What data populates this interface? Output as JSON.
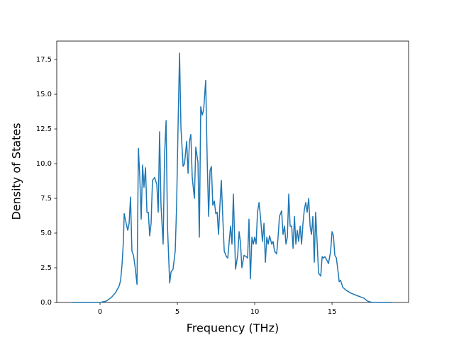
{
  "chart_data": {
    "type": "line",
    "x_label": "Frequency (THz)",
    "y_label": "Density of States",
    "color": "#1f77b4",
    "xlim": [
      -2.8,
      19.95
    ],
    "ylim": [
      0,
      18.83
    ],
    "xticks": [
      0,
      5,
      10,
      15
    ],
    "yticks": [
      {
        "value": 0,
        "label": "0.0"
      },
      2.5,
      {
        "value": 5,
        "label": "5.0"
      },
      7.5,
      {
        "value": 10,
        "label": "10.0"
      },
      12.5,
      {
        "value": 15,
        "label": "15.0"
      },
      17.5
    ],
    "x": [
      -1.79,
      -0.5,
      0,
      0.41,
      0.73,
      1.0,
      1.24,
      1.33,
      1.42,
      1.51,
      1.56,
      1.65,
      1.79,
      1.88,
      1.97,
      2.06,
      2.16,
      2.25,
      2.39,
      2.48,
      2.57,
      2.66,
      2.75,
      2.84,
      2.94,
      3.03,
      3.12,
      3.21,
      3.3,
      3.39,
      3.53,
      3.67,
      3.76,
      3.85,
      3.94,
      4.08,
      4.17,
      4.27,
      4.36,
      4.5,
      4.59,
      4.72,
      4.86,
      4.95,
      5.05,
      5.14,
      5.23,
      5.37,
      5.46,
      5.6,
      5.69,
      5.78,
      5.87,
      5.96,
      6.1,
      6.19,
      6.33,
      6.42,
      6.51,
      6.61,
      6.7,
      6.83,
      6.93,
      7.02,
      7.11,
      7.2,
      7.29,
      7.39,
      7.48,
      7.57,
      7.66,
      7.75,
      7.84,
      7.94,
      8.03,
      8.17,
      8.26,
      8.35,
      8.44,
      8.53,
      8.62,
      8.76,
      8.9,
      8.99,
      9.08,
      9.17,
      9.31,
      9.45,
      9.54,
      9.63,
      9.72,
      9.82,
      9.91,
      10.0,
      10.09,
      10.18,
      10.28,
      10.37,
      10.5,
      10.6,
      10.69,
      10.78,
      10.87,
      10.96,
      11.1,
      11.19,
      11.28,
      11.42,
      11.51,
      11.6,
      11.74,
      11.83,
      11.93,
      12.02,
      12.11,
      12.2,
      12.29,
      12.39,
      12.48,
      12.57,
      12.66,
      12.75,
      12.84,
      12.94,
      13.03,
      13.12,
      13.21,
      13.3,
      13.39,
      13.49,
      13.58,
      13.67,
      13.76,
      13.85,
      13.94,
      14.04,
      14.13,
      14.27,
      14.36,
      14.45,
      14.54,
      14.68,
      14.77,
      14.91,
      15.0,
      15.09,
      15.18,
      15.28,
      15.37,
      15.46,
      15.55,
      15.69,
      15.92,
      16.24,
      16.7,
      17.06,
      17.29,
      17.6,
      18.9
    ],
    "values": [
      0,
      0,
      0,
      0.1,
      0.36,
      0.7,
      1.2,
      1.6,
      2.7,
      4.4,
      6.4,
      5.9,
      5.2,
      5.7,
      7.6,
      3.7,
      3.4,
      2.7,
      1.3,
      11.1,
      9.0,
      6.0,
      9.9,
      8.3,
      9.7,
      6.5,
      6.5,
      4.8,
      5.7,
      8.8,
      9.0,
      8.5,
      6.5,
      12.3,
      7.0,
      4.2,
      10.6,
      13.1,
      5.5,
      1.4,
      2.2,
      2.4,
      3.7,
      7.0,
      13.1,
      17.96,
      12.6,
      9.8,
      10.0,
      11.6,
      9.3,
      11.6,
      12.1,
      9.0,
      7.5,
      11.2,
      10.1,
      4.7,
      14.1,
      13.5,
      13.9,
      16.0,
      10.1,
      6.2,
      9.5,
      9.8,
      7.0,
      7.3,
      6.4,
      6.5,
      4.9,
      7.0,
      8.8,
      6.0,
      3.7,
      3.3,
      3.2,
      4.4,
      5.5,
      4.2,
      7.8,
      2.4,
      3.4,
      5.1,
      4.3,
      2.5,
      3.4,
      3.3,
      3.2,
      6.0,
      1.7,
      4.7,
      4.2,
      4.7,
      4.2,
      6.5,
      7.2,
      6.2,
      4.4,
      5.7,
      2.9,
      4.7,
      4.2,
      4.8,
      4.2,
      4.4,
      3.7,
      3.5,
      4.7,
      6.2,
      6.6,
      4.9,
      5.5,
      4.2,
      4.7,
      7.8,
      5.5,
      5.5,
      3.9,
      6.2,
      4.2,
      5.2,
      4.4,
      5.5,
      4.2,
      5.7,
      6.7,
      7.2,
      6.5,
      7.5,
      5.5,
      4.9,
      6.2,
      2.9,
      6.5,
      4.2,
      2.1,
      1.9,
      3.3,
      3.2,
      3.3,
      3.0,
      2.8,
      3.7,
      5.1,
      4.8,
      3.4,
      3.2,
      2.4,
      1.5,
      1.6,
      1.1,
      0.87,
      0.66,
      0.46,
      0.31,
      0.1,
      0,
      0
    ]
  }
}
